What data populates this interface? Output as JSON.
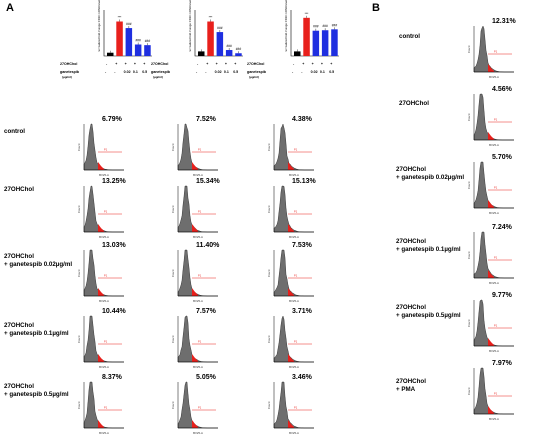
{
  "panel_a": {
    "letter": "A",
    "bar_y_label": "normalized fold change CD36 mRNA levels",
    "condition_labels": {
      "chol": "27OHChol",
      "drug": "ganetespib",
      "unit": "(µg/ml)"
    },
    "chol_row": [
      "-",
      "+",
      "+",
      "+",
      "+"
    ],
    "drug_row": [
      "-",
      "-",
      "0.02",
      "0.1",
      "0.5"
    ],
    "sig_marks": [
      "***",
      "###",
      "###",
      "###"
    ],
    "row_labels": [
      {
        "line1": "control",
        "line2": ""
      },
      {
        "line1": "27OHChol",
        "line2": ""
      },
      {
        "line1": "27OHChol",
        "line2": "+ ganetespib 0.02µg/ml"
      },
      {
        "line1": "27OHChol",
        "line2": "+ ganetespib 0.1µg/ml"
      },
      {
        "line1": "27OHChol",
        "line2": "+ ganetespib 0.5µg/ml"
      }
    ],
    "percentages": [
      [
        "6.79%",
        "7.52%",
        "4.38%"
      ],
      [
        "13.25%",
        "15.34%",
        "15.13%"
      ],
      [
        "13.03%",
        "11.40%",
        "7.53%"
      ],
      [
        "10.44%",
        "7.57%",
        "3.71%"
      ],
      [
        "8.37%",
        "5.05%",
        "3.46%"
      ]
    ]
  },
  "panel_b": {
    "letter": "B",
    "row_labels": [
      {
        "line1": "control",
        "line2": ""
      },
      {
        "line1": "27OHChol",
        "line2": ""
      },
      {
        "line1": "27OHChol",
        "line2": "+ ganetespib 0.02µg/ml"
      },
      {
        "line1": "27OHChol",
        "line2": "+ ganetespib 0.1µg/ml"
      },
      {
        "line1": "27OHChol",
        "line2": "+ ganetespib 0.5µg/ml"
      },
      {
        "line1": "27OHChol",
        "line2": "+ PMA"
      }
    ],
    "percentages": [
      "12.31%",
      "4.56%",
      "5.70%",
      "7.24%",
      "9.77%",
      "7.97%"
    ]
  },
  "hist_text": {
    "count": "Count",
    "xaxis": "BV25-A",
    "gate": "P1"
  },
  "colors": {
    "bar_control": "#000000",
    "bar_chol": "#e8201c",
    "bar_drug": "#1f2fe0",
    "hist_fill": "#6e6e6e",
    "gate_fill": "#e8201c"
  },
  "chart_data": [
    {
      "type": "bar",
      "categories": [
        "-/-",
        "+/-",
        "+/0.02",
        "+/0.1",
        "+/0.5"
      ],
      "values": [
        1,
        10.5,
        8.5,
        3.5,
        3.3
      ],
      "ylim": [
        0,
        14
      ]
    },
    {
      "type": "bar",
      "categories": [
        "-/-",
        "+/-",
        "+/0.02",
        "+/0.1",
        "+/0.5"
      ],
      "values": [
        1,
        7.5,
        5.2,
        1.3,
        0.6
      ],
      "ylim": [
        0,
        10
      ]
    },
    {
      "type": "bar",
      "categories": [
        "-/-",
        "+/-",
        "+/0.02",
        "+/0.1",
        "+/0.5"
      ],
      "values": [
        1,
        8.3,
        5.5,
        5.6,
        5.8
      ],
      "ylim": [
        0,
        10
      ]
    }
  ]
}
